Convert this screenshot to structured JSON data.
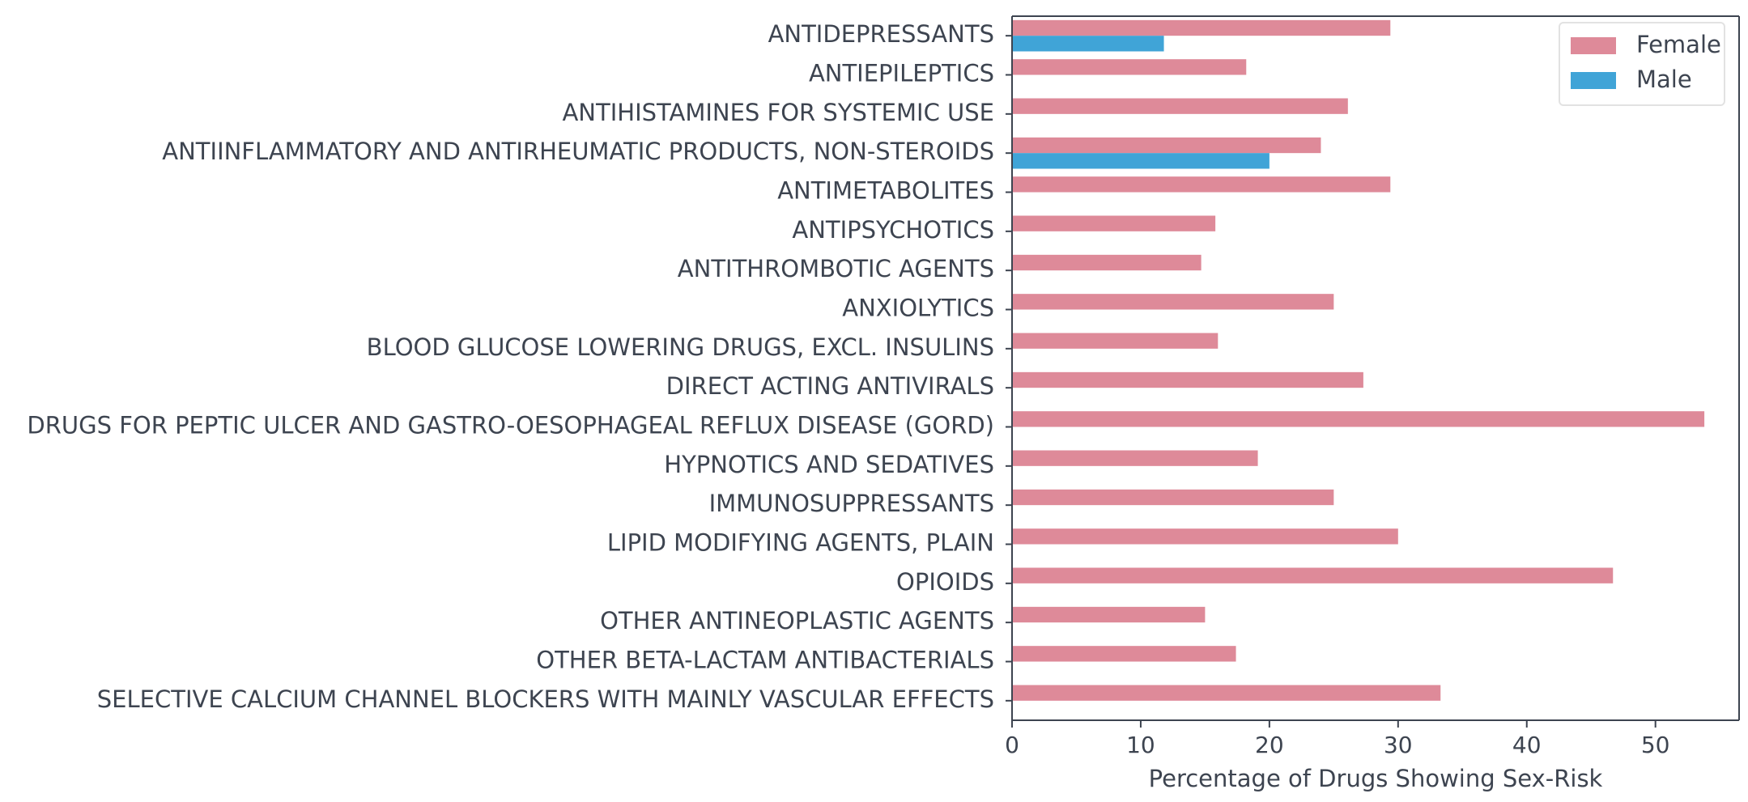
{
  "chart_data": {
    "type": "bar",
    "orientation": "horizontal",
    "categories": [
      "ANTIDEPRESSANTS",
      "ANTIEPILEPTICS",
      "ANTIHISTAMINES FOR SYSTEMIC USE",
      "ANTIINFLAMMATORY AND ANTIRHEUMATIC PRODUCTS, NON-STEROIDS",
      "ANTIMETABOLITES",
      "ANTIPSYCHOTICS",
      "ANTITHROMBOTIC AGENTS",
      "ANXIOLYTICS",
      "BLOOD GLUCOSE LOWERING DRUGS, EXCL. INSULINS",
      "DIRECT ACTING ANTIVIRALS",
      "DRUGS FOR PEPTIC ULCER AND GASTRO-OESOPHAGEAL REFLUX DISEASE (GORD)",
      "HYPNOTICS AND SEDATIVES",
      "IMMUNOSUPPRESSANTS",
      "LIPID MODIFYING AGENTS, PLAIN",
      "OPIOIDS",
      "OTHER ANTINEOPLASTIC AGENTS",
      "OTHER BETA-LACTAM ANTIBACTERIALS",
      "SELECTIVE CALCIUM CHANNEL BLOCKERS WITH MAINLY VASCULAR EFFECTS"
    ],
    "series": [
      {
        "name": "Female",
        "color": "#de8a99",
        "values": [
          29.4,
          18.2,
          26.1,
          24.0,
          29.4,
          15.8,
          14.7,
          25.0,
          16.0,
          27.3,
          53.8,
          19.1,
          25.0,
          30.0,
          46.7,
          15.0,
          17.4,
          33.3
        ]
      },
      {
        "name": "Male",
        "color": "#40a4d7",
        "values": [
          11.8,
          0,
          0,
          20.0,
          0,
          0,
          0,
          0,
          0,
          0,
          0,
          0,
          0,
          0,
          0,
          0,
          0,
          0
        ]
      }
    ],
    "xlabel": "Percentage of Drugs Showing Sex-Risk",
    "ylabel": "",
    "xlim": [
      0,
      56.5
    ],
    "xticks": [
      0,
      10,
      20,
      30,
      40,
      50
    ],
    "grid": false,
    "legend_position": "top-right"
  }
}
